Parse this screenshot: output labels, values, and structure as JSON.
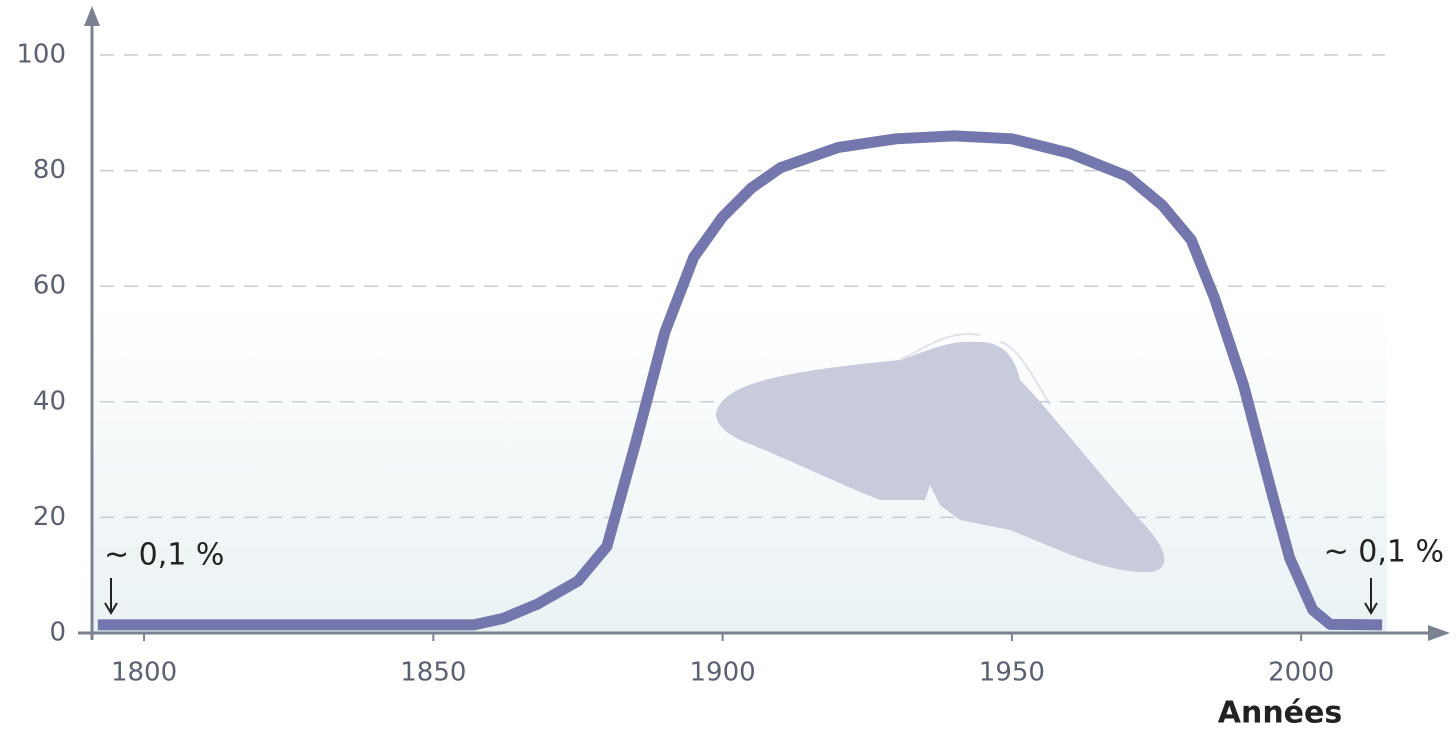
{
  "chart_data": {
    "type": "line",
    "x_label": "Années",
    "annotations": [
      "~ 0,1 %",
      "~ 0,1 %"
    ],
    "x": [
      1792,
      1857,
      1862,
      1868,
      1875,
      1880,
      1885,
      1890,
      1895,
      1900,
      1905,
      1910,
      1920,
      1930,
      1940,
      1950,
      1960,
      1970,
      1976,
      1981,
      1985,
      1990,
      1995,
      1998,
      2002,
      2005,
      2014
    ],
    "series": [
      {
        "color": "#7377ad",
        "values": [
          1.4,
          1.4,
          2.5,
          5,
          9,
          15,
          33,
          52,
          65,
          72,
          77,
          80.5,
          84,
          85.5,
          86,
          85.5,
          83,
          79,
          74,
          68,
          58,
          43,
          24,
          13,
          4,
          1.5,
          1.4
        ]
      }
    ],
    "xlim": [
      1791,
      2024
    ],
    "xticks": [
      1800,
      1850,
      1900,
      1950,
      2000
    ],
    "ylim": [
      0,
      100
    ],
    "yticks": [
      0,
      20,
      40,
      60,
      80,
      100
    ],
    "grid": true
  }
}
